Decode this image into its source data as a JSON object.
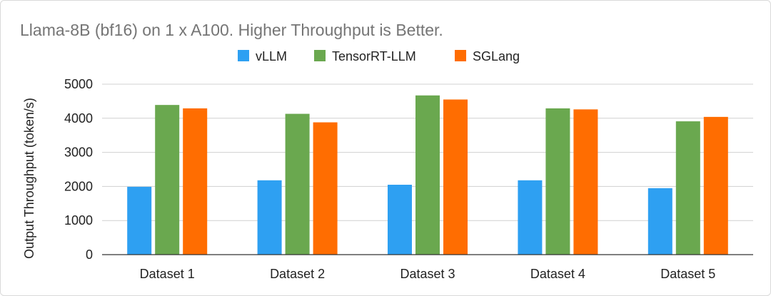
{
  "chart_data": {
    "type": "bar",
    "title": "Llama-8B (bf16) on 1 x A100. Higher Throughput is Better.",
    "xlabel": "",
    "ylabel": "Output Throughput (token/s)",
    "ylim": [
      0,
      5000
    ],
    "yticks": [
      0,
      1000,
      2000,
      3000,
      4000,
      5000
    ],
    "grid": true,
    "legend_position": "top",
    "categories": [
      "Dataset 1",
      "Dataset 2",
      "Dataset 3",
      "Dataset 4",
      "Dataset 5"
    ],
    "series": [
      {
        "name": "vLLM",
        "color": "#2ea0f2",
        "values": [
          1990,
          2180,
          2050,
          2180,
          1950
        ]
      },
      {
        "name": "TensorRT-LLM",
        "color": "#6aa84f",
        "values": [
          4390,
          4130,
          4670,
          4290,
          3910
        ]
      },
      {
        "name": "SGLang",
        "color": "#ff6d01",
        "values": [
          4290,
          3880,
          4550,
          4260,
          4040
        ]
      }
    ]
  }
}
